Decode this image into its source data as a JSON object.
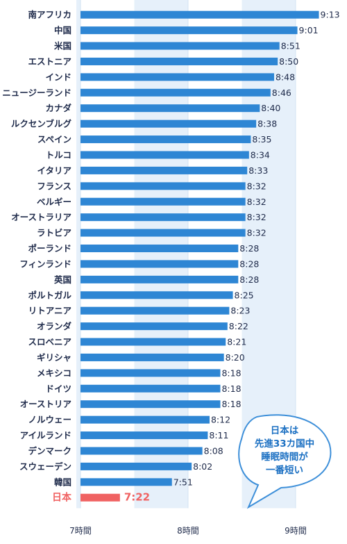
{
  "chart_data": {
    "type": "bar",
    "orientation": "horizontal",
    "categories": [
      "南アフリカ",
      "中国",
      "米国",
      "エストニア",
      "インド",
      "ニュージーランド",
      "カナダ",
      "ルクセンブルグ",
      "スペイン",
      "トルコ",
      "イタリア",
      "フランス",
      "ベルギー",
      "オーストラリア",
      "ラトビア",
      "ポーランド",
      "フィンランド",
      "英国",
      "ポルトガル",
      "リトアニア",
      "オランダ",
      "スロベニア",
      "ギリシャ",
      "メキシコ",
      "ドイツ",
      "オーストリア",
      "ノルウェー",
      "アイルランド",
      "デンマーク",
      "スウェーデン",
      "韓国",
      "日本"
    ],
    "values": [
      553,
      541,
      531,
      530,
      528,
      526,
      520,
      518,
      515,
      514,
      513,
      512,
      512,
      512,
      512,
      508,
      508,
      508,
      505,
      503,
      502,
      501,
      500,
      498,
      498,
      498,
      492,
      491,
      488,
      482,
      471,
      442
    ],
    "value_labels": [
      "9:13",
      "9:01",
      "8:51",
      "8:50",
      "8:48",
      "8:46",
      "8:40",
      "8:38",
      "8:35",
      "8:34",
      "8:33",
      "8:32",
      "8:32",
      "8:32",
      "8:32",
      "8:28",
      "8:28",
      "8:28",
      "8:25",
      "8:23",
      "8:22",
      "8:21",
      "8:20",
      "8:18",
      "8:18",
      "8:18",
      "8:12",
      "8:11",
      "8:08",
      "8:02",
      "7:51",
      "7:22"
    ],
    "highlight": "日本",
    "x_ticks": [
      420,
      480,
      540
    ],
    "x_tick_labels": [
      "7時間",
      "8時間",
      "9時間"
    ],
    "xlim": [
      420,
      560
    ],
    "grid": true,
    "colors": {
      "bar": "#2e86d4",
      "highlight": "#f06262",
      "highlight_label": "#f06262",
      "band": "#e6f0fa",
      "bubble_text": "#1a6fc2",
      "bubble_border": "#3d8fd9"
    }
  },
  "callout": {
    "lines": [
      "日本は",
      "先進33カ国中",
      "睡眠時間が",
      "一番短い"
    ]
  }
}
